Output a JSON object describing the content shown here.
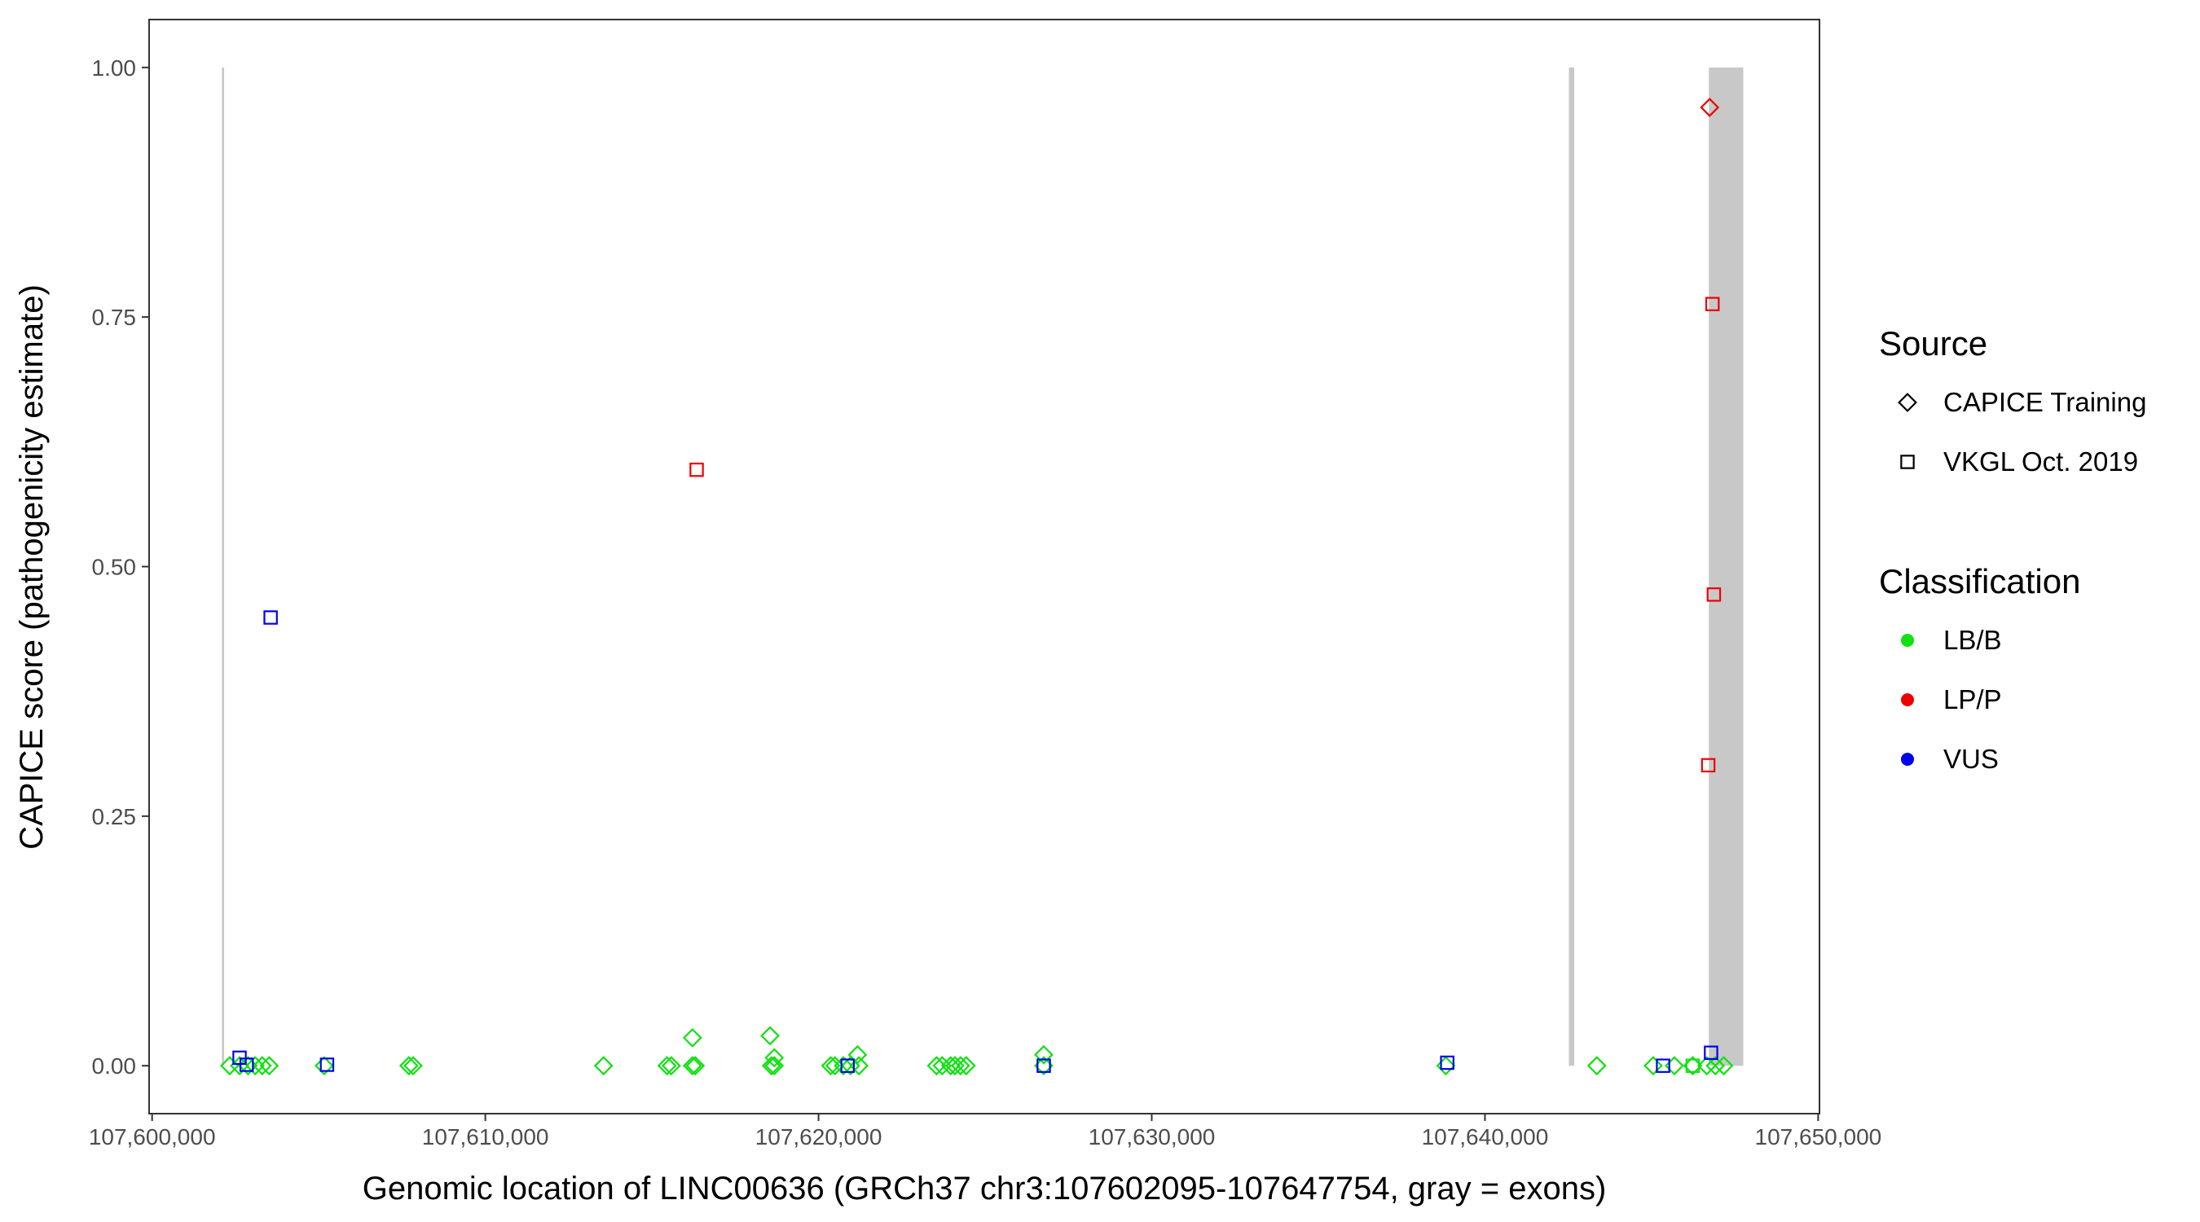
{
  "chart_data": {
    "type": "scatter",
    "x_label": "Genomic location of LINC00636 (GRCh37 chr3:107602095-107647754, gray = exons)",
    "y_label": "CAPICE score (pathogenicity estimate)",
    "xlim": [
      107599910,
      107650040
    ],
    "ylim": [
      -0.048,
      1.048
    ],
    "xticks": [
      {
        "value": 107600000,
        "label": "107,600,000"
      },
      {
        "value": 107610000,
        "label": "107,610,000"
      },
      {
        "value": 107620000,
        "label": "107,620,000"
      },
      {
        "value": 107630000,
        "label": "107,630,000"
      },
      {
        "value": 107640000,
        "label": "107,640,000"
      },
      {
        "value": 107650000,
        "label": "107,650,000"
      }
    ],
    "yticks": [
      {
        "value": 0,
        "label": "0.00"
      },
      0.25,
      {
        "value": 0.5,
        "label": "0.50"
      },
      0.75,
      {
        "value": 1,
        "label": "1.00"
      }
    ],
    "exon_color": "#c8c8c8",
    "exons": [
      [
        107602095,
        107602160
      ],
      [
        107642520,
        107642680
      ],
      [
        107646720,
        107647754
      ]
    ],
    "exon_ylim": [
      0,
      1
    ],
    "legend": {
      "position": "right",
      "groups": [
        {
          "title": "Source",
          "entries": [
            {
              "label": "CAPICE Training",
              "shape": "diamond"
            },
            {
              "label": "VKGL Oct. 2019",
              "shape": "square"
            }
          ]
        },
        {
          "title": "Classification",
          "entries": [
            {
              "label": "LB/B",
              "color": "#11e011"
            },
            {
              "label": "LP/P",
              "color": "#ee0000"
            },
            {
              "label": "VUS",
              "color": "#0000ee"
            }
          ]
        }
      ]
    },
    "series": [
      {
        "source": "CAPICE Training",
        "classification": "LB/B",
        "x": [
          107602329,
          107602625,
          107602879,
          107603091,
          107603303,
          107603514,
          107605165,
          107607706,
          107607833,
          107613549,
          107615454,
          107615581,
          107616216,
          107616301,
          107618587,
          107618672,
          107620366,
          107620493,
          107620747,
          107620959,
          107621213,
          107623542,
          107623711,
          107623965,
          107624092,
          107624261,
          107624431,
          107626759,
          107638826,
          107643357,
          107645050,
          107645685,
          107646236,
          107646659,
          107646913,
          107647167,
          107616216,
          107618545,
          107618672,
          107621170,
          107626759
        ],
        "y": [
          0,
          0,
          0,
          0,
          0,
          0,
          0,
          0,
          0,
          0,
          0,
          0,
          0,
          0,
          0,
          0,
          0,
          0,
          0,
          0,
          0,
          0,
          0,
          0,
          0,
          0,
          0,
          0,
          0,
          0,
          0,
          0,
          0,
          0,
          0,
          0,
          0.028,
          0.03,
          0.008,
          0.011,
          0.011
        ]
      },
      {
        "source": "CAPICE Training",
        "classification": "LP/P",
        "x": [
          107646744
        ],
        "y": [
          0.96
        ]
      },
      {
        "source": "VKGL Oct. 2019",
        "classification": "LB/B",
        "x": [
          107646236
        ],
        "y": [
          0
        ]
      },
      {
        "source": "VKGL Oct. 2019",
        "classification": "LP/P",
        "x": [
          107616343,
          107646829,
          107646871,
          107646702
        ],
        "y": [
          0.597,
          0.763,
          0.472,
          0.301
        ]
      },
      {
        "source": "VKGL Oct. 2019",
        "classification": "VUS",
        "x": [
          107603557,
          107602625,
          107602837,
          107605250,
          107620874,
          107626759,
          107638869,
          107645346,
          107646786
        ],
        "y": [
          0.449,
          0.008,
          0.001,
          0.001,
          0,
          0,
          0.003,
          0,
          0.013
        ]
      }
    ]
  }
}
